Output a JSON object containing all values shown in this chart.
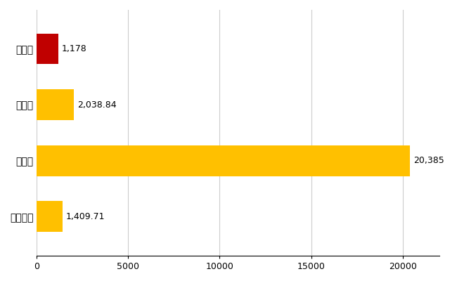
{
  "categories": [
    "全国平均",
    "県最大",
    "県平均",
    "川西市"
  ],
  "values": [
    1409.71,
    20385,
    2038.84,
    1178
  ],
  "bar_colors": [
    "#FFC000",
    "#FFC000",
    "#FFC000",
    "#C00000"
  ],
  "value_labels": [
    "1,409.71",
    "20,385",
    "2,038.84",
    "1,178"
  ],
  "xlim": [
    0,
    22000
  ],
  "xticks": [
    0,
    5000,
    10000,
    15000,
    20000
  ],
  "grid_color": "#CCCCCC",
  "background_color": "#FFFFFF",
  "bar_height": 0.55,
  "label_fontsize": 10,
  "tick_fontsize": 9,
  "value_label_fontsize": 9
}
